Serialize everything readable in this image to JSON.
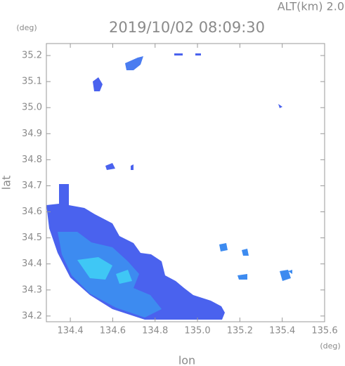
{
  "chart_data": {
    "type": "radar",
    "title": "2019/10/02 08:09:30",
    "subtitle": "ALT(km) 2.0",
    "x_label": "lon",
    "y_label": "lat",
    "x_unit": "(deg)",
    "y_unit": "(deg)",
    "xlim": [
      134.287,
      135.6
    ],
    "ylim": [
      34.178,
      35.246
    ],
    "xticks": [
      134.4,
      134.6,
      134.8,
      {
        "value": 135,
        "label": "135.0"
      },
      135.2,
      135.4,
      135.6
    ],
    "yticks": [
      34.2,
      34.3,
      34.4,
      34.5,
      34.6,
      34.7,
      34.8,
      34.9,
      {
        "value": 35,
        "label": "35.0"
      },
      35.1,
      35.2
    ]
  }
}
